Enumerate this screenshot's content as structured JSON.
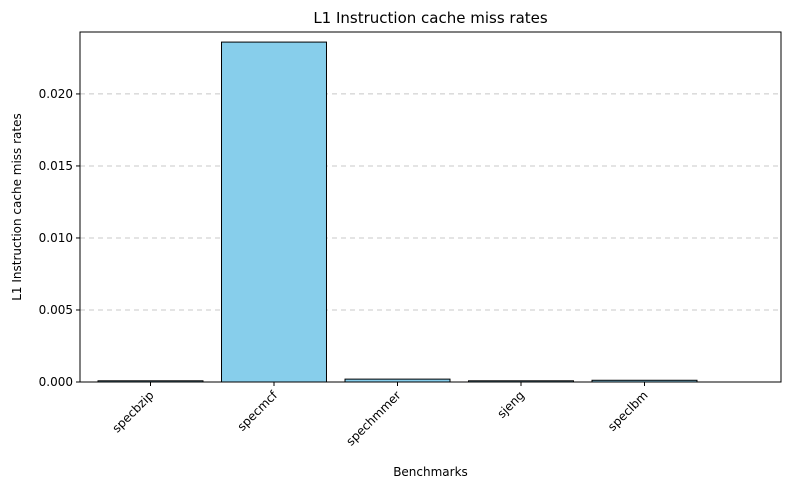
{
  "chart_data": {
    "type": "bar",
    "title": "L1 Instruction cache miss rates",
    "xlabel": "Benchmarks",
    "ylabel": "L1 Instruction cache miss rates",
    "categories": [
      "specbzip",
      "specmcf",
      "spechmmer",
      "sjeng",
      "speclbm"
    ],
    "values": [
      5e-05,
      0.0236,
      0.0002,
      5e-05,
      0.00012
    ],
    "ylim": [
      0,
      0.0243
    ],
    "yticks": [
      0.0,
      0.005,
      0.01,
      0.015,
      0.02
    ],
    "ytick_labels": [
      "0.000",
      "0.005",
      "0.010",
      "0.015",
      "0.020"
    ],
    "grid": "y-dashed",
    "bar_color": "#87ceeb",
    "bar_edge_color": "#000000",
    "grid_color": "#c8c8c8"
  }
}
